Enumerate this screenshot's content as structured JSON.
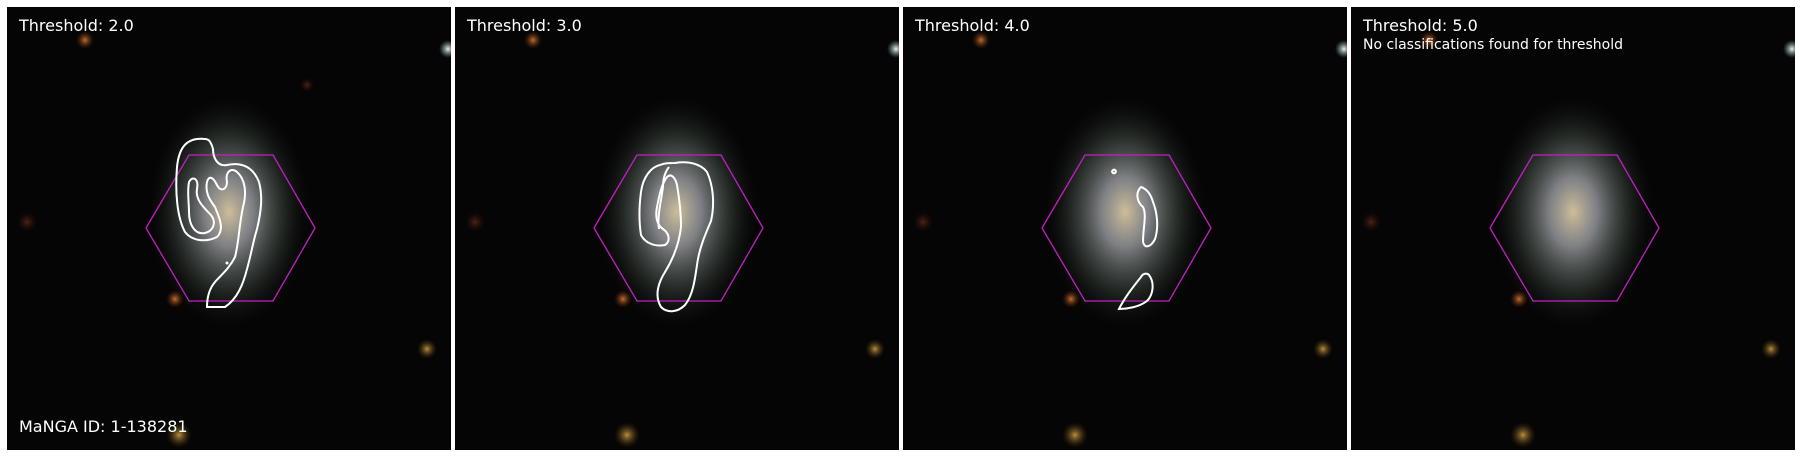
{
  "panels": [
    {
      "title": "Threshold: 2.0",
      "note": "",
      "manga_id": "MaNGA ID: 1-138281"
    },
    {
      "title": "Threshold: 3.0",
      "note": "",
      "manga_id": ""
    },
    {
      "title": "Threshold: 4.0",
      "note": "",
      "manga_id": ""
    },
    {
      "title": "Threshold: 5.0",
      "note": "No classifications found for threshold",
      "manga_id": ""
    }
  ],
  "colors": {
    "hexagon": "#c020c0",
    "contour": "#ffffff",
    "background": "#050505"
  }
}
